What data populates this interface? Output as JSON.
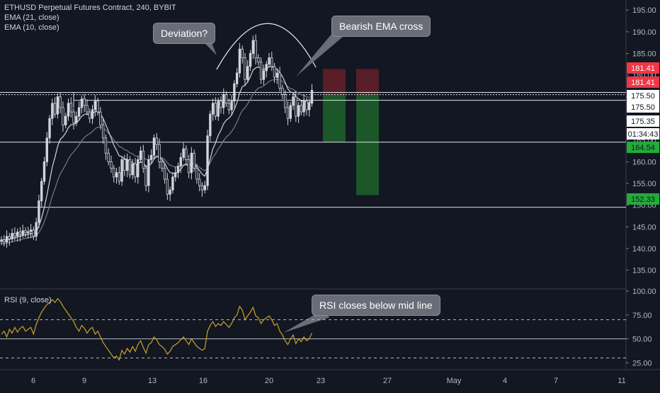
{
  "legend": {
    "title": "ETHUSD Perpetual Futures Contract, 240, BYBIT",
    "ema21": "EMA (21, close)",
    "ema10": "EMA (10, close)",
    "rsi": "RSI (9, close)"
  },
  "annotations": {
    "deviation": "Deviation?",
    "bearish": "Bearish EMA cross",
    "rsi_note": "RSI closes below mid line"
  },
  "price_axis": {
    "ticks": [
      "195.00",
      "190.00",
      "185.00",
      "180.00",
      "175.00",
      "170.00",
      "165.00",
      "160.00",
      "155.00",
      "150.00",
      "145.00",
      "140.00",
      "135.00"
    ]
  },
  "rsi_axis": {
    "ticks": [
      "100.00",
      "75.00",
      "50.00",
      "25.00"
    ]
  },
  "price_labels": [
    {
      "text": "181.41",
      "bg": "#f23645",
      "fg": "#ffffff"
    },
    {
      "text": "181.41",
      "bg": "#f23645",
      "fg": "#ffffff"
    },
    {
      "text": "175.50",
      "bg": "#ffffff",
      "fg": "#131722"
    },
    {
      "text": "175.50",
      "bg": "#ffffff",
      "fg": "#131722"
    },
    {
      "text": "175.35",
      "bg": "#ffffff",
      "fg": "#131722"
    },
    {
      "text": "01:34:43",
      "bg": "#ffffff",
      "fg": "#131722"
    },
    {
      "text": "164.54",
      "bg": "#22ab3a",
      "fg": "#131722"
    },
    {
      "text": "152.33",
      "bg": "#22ab3a",
      "fg": "#131722"
    }
  ],
  "x_axis": {
    "labels": [
      "6",
      "9",
      "13",
      "16",
      "20",
      "23",
      "27",
      "May",
      "4",
      "7",
      "11"
    ]
  },
  "colors": {
    "background": "#131722",
    "candle": "#d1d4dc",
    "ema21": "#787b86",
    "ema10": "#d1d4dc",
    "rsi_line": "#c9a227",
    "short_stop": "#5d1f29",
    "short_target": "#1b5b29"
  },
  "chart_data": [
    {
      "type": "candlestick",
      "title": "ETHUSD Perpetual Futures Contract, 240, BYBIT",
      "ylim": [
        131,
        197
      ],
      "close": [
        142.0,
        141.5,
        142.8,
        142.2,
        143.5,
        142.9,
        143.8,
        143.2,
        144.1,
        143.6,
        143.9,
        144.3,
        142.8,
        146.0,
        151.0,
        155.5,
        160.0,
        165.5,
        170.0,
        173.5,
        171.0,
        175.0,
        172.5,
        168.5,
        170.5,
        173.5,
        171.5,
        169.0,
        170.5,
        172.5,
        174.5,
        173.0,
        171.5,
        170.0,
        172.0,
        174.0,
        171.5,
        168.5,
        165.5,
        162.0,
        160.0,
        158.5,
        156.5,
        157.5,
        155.5,
        160.5,
        158.0,
        160.5,
        157.0,
        159.5,
        156.5,
        160.5,
        162.5,
        158.5,
        154.5,
        160.5,
        161.5,
        165.5,
        164.0,
        160.0,
        158.5,
        156.0,
        152.5,
        153.5,
        156.5,
        157.5,
        159.0,
        161.0,
        163.0,
        160.5,
        157.5,
        162.0,
        158.5,
        156.0,
        154.5,
        153.5,
        154.5,
        166.0,
        171.0,
        173.5,
        170.5,
        174.0,
        172.5,
        175.5,
        173.5,
        172.0,
        174.0,
        178.0,
        180.5,
        186.0,
        184.0,
        179.0,
        182.0,
        185.0,
        188.0,
        184.0,
        183.0,
        179.0,
        181.0,
        182.5,
        184.0,
        182.0,
        179.5,
        180.5,
        177.0,
        175.5,
        172.5,
        170.0,
        173.0,
        175.0,
        170.5,
        173.0,
        171.5,
        174.0,
        172.0,
        173.5,
        176.5
      ],
      "ema10_start": 142.0,
      "ema21_start": 141.0
    },
    {
      "type": "line",
      "title": "RSI (9, close)",
      "ylim": [
        20,
        100
      ],
      "bands": [
        70,
        50,
        30
      ],
      "values": [
        55,
        58,
        52,
        60,
        56,
        62,
        57,
        61,
        63,
        58,
        60,
        62,
        55,
        65,
        72,
        78,
        82,
        86,
        88,
        91,
        88,
        92,
        89,
        84,
        80,
        76,
        72,
        68,
        62,
        58,
        64,
        61,
        56,
        60,
        62,
        55,
        58,
        52,
        46,
        42,
        38,
        34,
        30,
        32,
        28,
        38,
        34,
        40,
        36,
        42,
        37,
        44,
        48,
        41,
        35,
        44,
        46,
        52,
        49,
        44,
        42,
        39,
        34,
        37,
        42,
        44,
        46,
        49,
        52,
        48,
        44,
        50,
        46,
        42,
        40,
        38,
        40,
        58,
        64,
        68,
        63,
        66,
        64,
        68,
        65,
        62,
        66,
        72,
        75,
        84,
        80,
        70,
        74,
        78,
        83,
        74,
        72,
        66,
        70,
        72,
        74,
        70,
        64,
        66,
        58,
        54,
        48,
        44,
        50,
        54,
        45,
        50,
        47,
        52,
        48,
        50,
        56
      ],
      "ylabel": ""
    }
  ]
}
